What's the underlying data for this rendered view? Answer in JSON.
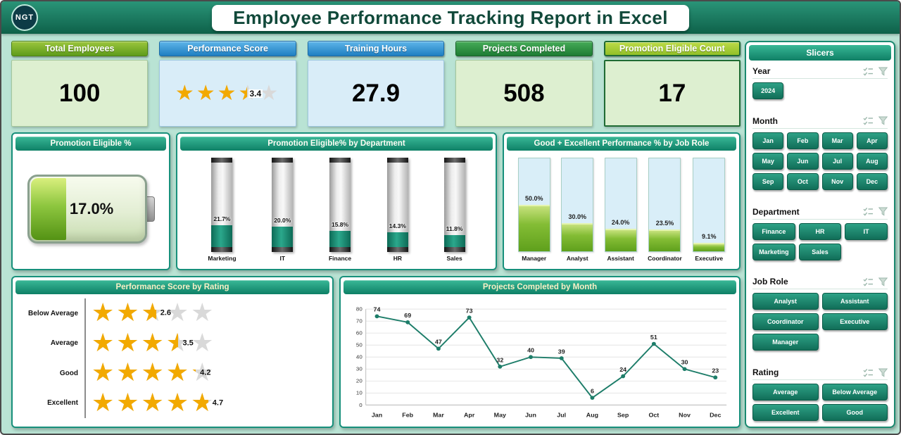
{
  "header": {
    "title": "Employee Performance Tracking Report in Excel",
    "logo_text": "NGT"
  },
  "kpis": [
    {
      "label": "Total Employees",
      "value": "100"
    },
    {
      "label": "Performance Score",
      "value": "3.4",
      "stars": 3.4
    },
    {
      "label": "Training Hours",
      "value": "27.9"
    },
    {
      "label": "Projects Completed",
      "value": "508"
    },
    {
      "label": "Promotion Eligible Count",
      "value": "17"
    }
  ],
  "chart_data": [
    {
      "id": "dept",
      "type": "bar",
      "title": "Promotion Eligible% by Department",
      "categories": [
        "Marketing",
        "IT",
        "Finance",
        "HR",
        "Sales"
      ],
      "values": [
        21.7,
        20.0,
        15.8,
        14.3,
        11.8
      ],
      "labels": [
        "21.7%",
        "20.0%",
        "15.8%",
        "14.3%",
        "11.8%"
      ],
      "ylim": [
        0,
        100
      ],
      "legend": "none"
    },
    {
      "id": "jobrole",
      "type": "bar",
      "title": "Good + Excellent Performance % by Job Role",
      "categories": [
        "Manager",
        "Analyst",
        "Assistant",
        "Coordinator",
        "Executive"
      ],
      "values": [
        50.0,
        30.0,
        24.0,
        23.5,
        9.1
      ],
      "labels": [
        "50.0%",
        "30.0%",
        "24.0%",
        "23.5%",
        "9.1%"
      ],
      "ylim": [
        0,
        100
      ],
      "legend": "none"
    },
    {
      "id": "rating",
      "type": "bar",
      "title": "Performance Score by Rating",
      "categories": [
        "Below Average",
        "Average",
        "Good",
        "Excellent"
      ],
      "values": [
        2.6,
        3.5,
        4.2,
        4.7
      ],
      "ylim": [
        0,
        5
      ],
      "style": "star-rating"
    },
    {
      "id": "months",
      "type": "line",
      "title": "Projects Completed by Month",
      "categories": [
        "Jan",
        "Feb",
        "Mar",
        "Apr",
        "May",
        "Jun",
        "Jul",
        "Aug",
        "Sep",
        "Oct",
        "Nov",
        "Dec"
      ],
      "values": [
        74,
        69,
        47,
        73,
        32,
        40,
        39,
        6,
        24,
        51,
        30,
        23
      ],
      "ylim": [
        0,
        80
      ],
      "ytick_step": 10,
      "grid": "horizontal"
    },
    {
      "id": "promotion",
      "type": "bar",
      "title": "Promotion Eligible %",
      "categories": [
        "Promotion Eligible %"
      ],
      "values": [
        17.0
      ],
      "label": "17.0%",
      "ylim": [
        0,
        100
      ],
      "style": "battery-gauge"
    }
  ],
  "slicers": {
    "title": "Slicers",
    "sections": [
      {
        "label": "Year",
        "cols": 4,
        "buttons": [
          "2024"
        ]
      },
      {
        "label": "Month",
        "cols": 4,
        "buttons": [
          "Jan",
          "Feb",
          "Mar",
          "Apr",
          "May",
          "Jun",
          "Jul",
          "Aug",
          "Sep",
          "Oct",
          "Nov",
          "Dec"
        ]
      },
      {
        "label": "Department",
        "cols": 3,
        "buttons": [
          "Finance",
          "HR",
          "IT",
          "Marketing",
          "Sales"
        ]
      },
      {
        "label": "Job Role",
        "cols": 2,
        "buttons": [
          "Analyst",
          "Assistant",
          "Coordinator",
          "Executive",
          "Manager"
        ]
      },
      {
        "label": "Rating",
        "cols": 2,
        "buttons": [
          "Average",
          "Below Average",
          "Excellent",
          "Good"
        ]
      }
    ]
  },
  "colors": {
    "accent_teal": "#17907b",
    "kpi_green": "#6faf1f",
    "kpi_blue": "#2e8fd0",
    "kpi_lime": "#a6cf35",
    "star_gold": "#f2a900",
    "line_series": "#1d7d69",
    "bar_fill_teal": "#1d8a72",
    "bar_fill_green": "#7ab82e",
    "page_background": "#b9e3d4"
  }
}
